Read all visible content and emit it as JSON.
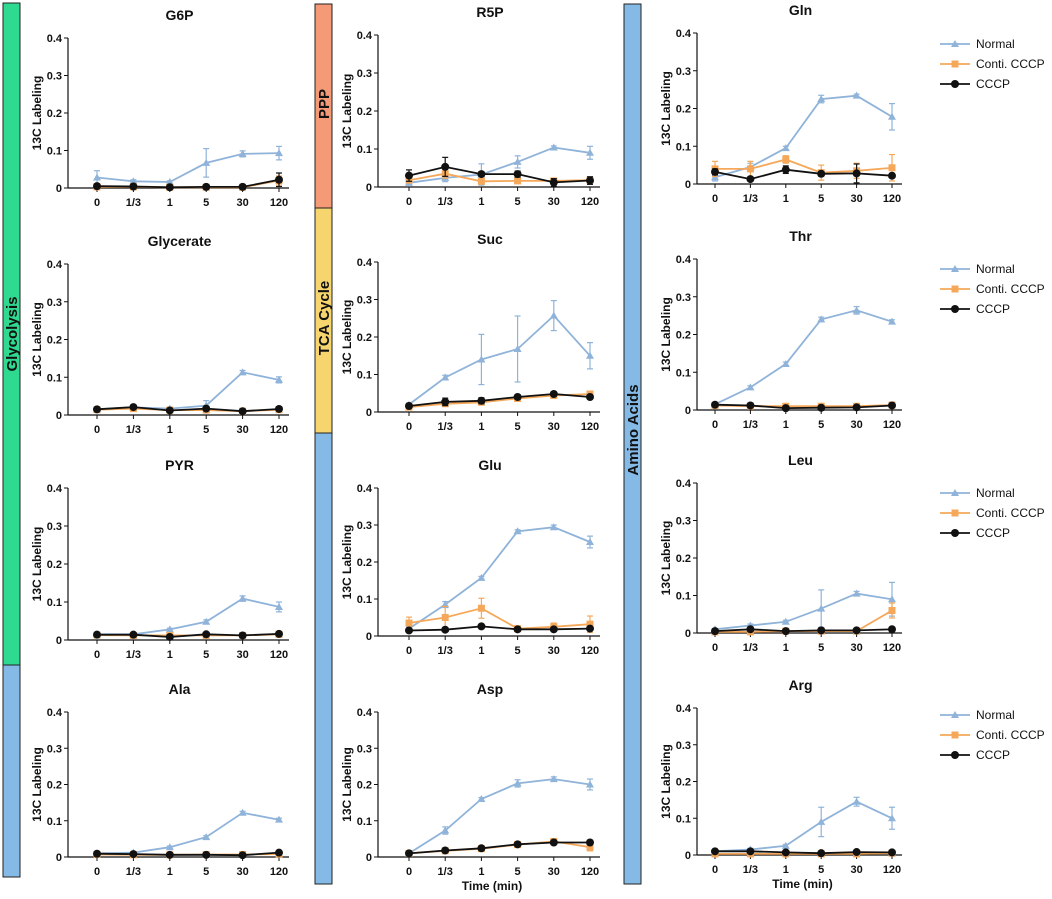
{
  "colors": {
    "normal": "#8fb3d9",
    "conti": "#f5a85a",
    "cccp": "#111111",
    "glycolysis_bar": "#2fd98f",
    "blue_bar": "#85b9e6",
    "ppp_bar": "#f49a77",
    "tca_bar": "#f6d56e"
  },
  "legend": [
    "Normal",
    "Conti. CCCP",
    "CCCP"
  ],
  "side_labels": {
    "glycolysis": "Glycolysis",
    "ppp": "PPP",
    "tca": "TCA Cycle",
    "amino": "Amino Acids"
  },
  "chart_data": [
    {
      "type": "line",
      "title": "G6P",
      "xlabel": "",
      "ylabel": "13C Labeling",
      "categories": [
        "0",
        "1/3",
        "1",
        "5",
        "30",
        "120"
      ],
      "ylim": [
        0,
        0.4
      ],
      "yticks": [
        "0",
        "0.1",
        "0.2",
        "0.3",
        "0.4"
      ],
      "series": [
        {
          "name": "Normal",
          "values": [
            0.028,
            0.018,
            0.016,
            0.067,
            0.091,
            0.093
          ],
          "err": [
            0.018,
            0.004,
            0.003,
            0.038,
            0.008,
            0.018
          ]
        },
        {
          "name": "Conti. CCCP",
          "values": [
            0.003,
            0.003,
            0.002,
            0.002,
            0.002,
            0.02
          ],
          "err": [
            0,
            0,
            0,
            0,
            0,
            0.012
          ]
        },
        {
          "name": "CCCP",
          "values": [
            0.005,
            0.004,
            0.002,
            0.003,
            0.003,
            0.022
          ],
          "err": [
            0,
            0,
            0,
            0,
            0,
            0.018
          ]
        }
      ]
    },
    {
      "type": "line",
      "title": "R5P",
      "xlabel": "",
      "ylabel": "13C Labeling",
      "categories": [
        "0",
        "1/3",
        "1",
        "5",
        "30",
        "120"
      ],
      "ylim": [
        0,
        0.4
      ],
      "yticks": [
        "0",
        "0.1",
        "0.2",
        "0.3",
        "0.4"
      ],
      "series": [
        {
          "name": "Normal",
          "values": [
            0.011,
            0.024,
            0.033,
            0.066,
            0.104,
            0.09
          ],
          "err": [
            0.004,
            0.01,
            0.028,
            0.016,
            0.004,
            0.017
          ]
        },
        {
          "name": "Conti. CCCP",
          "values": [
            0.018,
            0.035,
            0.015,
            0.016,
            0.016,
            0.018
          ],
          "err": [
            0.003,
            0.012,
            0.003,
            0.003,
            0.003,
            0.004
          ]
        },
        {
          "name": "CCCP",
          "values": [
            0.03,
            0.053,
            0.034,
            0.034,
            0.012,
            0.017
          ],
          "err": [
            0.015,
            0.025,
            0.006,
            0.008,
            0.01,
            0.01
          ]
        }
      ]
    },
    {
      "type": "line",
      "title": "Gln",
      "xlabel": "",
      "ylabel": "13C Labeling",
      "categories": [
        "0",
        "1/3",
        "1",
        "5",
        "30",
        "120"
      ],
      "ylim": [
        0,
        0.4
      ],
      "yticks": [
        "0",
        "0.1",
        "0.2",
        "0.3",
        "0.4"
      ],
      "series": [
        {
          "name": "Normal",
          "values": [
            0.018,
            0.045,
            0.095,
            0.225,
            0.234,
            0.178
          ],
          "err": [
            0.01,
            0.01,
            0.005,
            0.01,
            0.004,
            0.035
          ]
        },
        {
          "name": "Conti. CCCP",
          "values": [
            0.04,
            0.04,
            0.065,
            0.03,
            0.035,
            0.043
          ],
          "err": [
            0.02,
            0.02,
            0.01,
            0.02,
            0.02,
            0.035
          ]
        },
        {
          "name": "CCCP",
          "values": [
            0.032,
            0.013,
            0.038,
            0.027,
            0.028,
            0.022
          ],
          "err": [
            0.008,
            0.005,
            0.01,
            0.006,
            0.025,
            0.005
          ]
        }
      ]
    },
    {
      "type": "line",
      "title": "Glycerate",
      "xlabel": "",
      "ylabel": "13C Labeling",
      "categories": [
        "0",
        "1/3",
        "1",
        "5",
        "30",
        "120"
      ],
      "ylim": [
        0,
        0.4
      ],
      "yticks": [
        "0",
        "0.1",
        "0.2",
        "0.3",
        "0.4"
      ],
      "series": [
        {
          "name": "Normal",
          "values": [
            0.015,
            0.02,
            0.017,
            0.025,
            0.113,
            0.093
          ],
          "err": [
            0.003,
            0.003,
            0.003,
            0.013,
            0.005,
            0.008
          ]
        },
        {
          "name": "Conti. CCCP",
          "values": [
            0.014,
            0.017,
            0.013,
            0.013,
            0.01,
            0.014
          ],
          "err": [
            0,
            0,
            0,
            0,
            0,
            0
          ]
        },
        {
          "name": "CCCP",
          "values": [
            0.015,
            0.021,
            0.012,
            0.017,
            0.01,
            0.016
          ],
          "err": [
            0.002,
            0.004,
            0.002,
            0.006,
            0.004,
            0.002
          ]
        }
      ]
    },
    {
      "type": "line",
      "title": "Suc",
      "xlabel": "",
      "ylabel": "13C Labeling",
      "categories": [
        "0",
        "1/3",
        "1",
        "5",
        "30",
        "120"
      ],
      "ylim": [
        0,
        0.4
      ],
      "yticks": [
        "0",
        "0.1",
        "0.2",
        "0.3",
        "0.4"
      ],
      "series": [
        {
          "name": "Normal",
          "values": [
            0.02,
            0.092,
            0.14,
            0.168,
            0.257,
            0.15
          ],
          "err": [
            0.004,
            0.006,
            0.067,
            0.088,
            0.04,
            0.035
          ]
        },
        {
          "name": "Conti. CCCP",
          "values": [
            0.013,
            0.022,
            0.026,
            0.036,
            0.044,
            0.048
          ],
          "err": [
            0,
            0.004,
            0.004,
            0.004,
            0.004,
            0.004
          ]
        },
        {
          "name": "CCCP",
          "values": [
            0.016,
            0.027,
            0.03,
            0.04,
            0.048,
            0.04
          ],
          "err": [
            0.003,
            0.01,
            0.008,
            0.006,
            0.005,
            0.005
          ]
        }
      ]
    },
    {
      "type": "line",
      "title": "Thr",
      "xlabel": "",
      "ylabel": "13C Labeling",
      "categories": [
        "0",
        "1/3",
        "1",
        "5",
        "30",
        "120"
      ],
      "ylim": [
        0,
        0.4
      ],
      "yticks": [
        "0",
        "0.1",
        "0.2",
        "0.3",
        "0.4"
      ],
      "series": [
        {
          "name": "Normal",
          "values": [
            0.015,
            0.06,
            0.122,
            0.24,
            0.264,
            0.234
          ],
          "err": [
            0.002,
            0.004,
            0.005,
            0.006,
            0.01,
            0.005
          ]
        },
        {
          "name": "Conti. CCCP",
          "values": [
            0.012,
            0.01,
            0.01,
            0.01,
            0.01,
            0.013
          ],
          "err": [
            0,
            0,
            0.004,
            0.004,
            0.004,
            0.004
          ]
        },
        {
          "name": "CCCP",
          "values": [
            0.014,
            0.012,
            0.005,
            0.006,
            0.007,
            0.012
          ],
          "err": [
            0.002,
            0.002,
            0.002,
            0.002,
            0.002,
            0.002
          ]
        }
      ]
    },
    {
      "type": "line",
      "title": "PYR",
      "xlabel": "",
      "ylabel": "13C Labeling",
      "categories": [
        "0",
        "1/3",
        "1",
        "5",
        "30",
        "120"
      ],
      "ylim": [
        0,
        0.4
      ],
      "yticks": [
        "0",
        "0.1",
        "0.2",
        "0.3",
        "0.4"
      ],
      "series": [
        {
          "name": "Normal",
          "values": [
            0.015,
            0.015,
            0.028,
            0.048,
            0.109,
            0.087
          ],
          "err": [
            0.002,
            0.002,
            0.003,
            0.005,
            0.007,
            0.013
          ]
        },
        {
          "name": "Conti. CCCP",
          "values": [
            0.013,
            0.012,
            0.012,
            0.012,
            0.012,
            0.015
          ],
          "err": [
            0,
            0,
            0,
            0,
            0,
            0
          ]
        },
        {
          "name": "CCCP",
          "values": [
            0.014,
            0.014,
            0.008,
            0.015,
            0.012,
            0.016
          ],
          "err": [
            0.002,
            0.002,
            0.002,
            0.002,
            0.002,
            0.002
          ]
        }
      ]
    },
    {
      "type": "line",
      "title": "Glu",
      "xlabel": "",
      "ylabel": "13C Labeling",
      "categories": [
        "0",
        "1/3",
        "1",
        "5",
        "30",
        "120"
      ],
      "ylim": [
        0,
        0.4
      ],
      "yticks": [
        "0",
        "0.1",
        "0.2",
        "0.3",
        "0.4"
      ],
      "series": [
        {
          "name": "Normal",
          "values": [
            0.02,
            0.085,
            0.157,
            0.283,
            0.294,
            0.254
          ],
          "err": [
            0.004,
            0.008,
            0.004,
            0.004,
            0.006,
            0.016
          ]
        },
        {
          "name": "Conti. CCCP",
          "values": [
            0.035,
            0.05,
            0.075,
            0.02,
            0.025,
            0.032
          ],
          "err": [
            0.016,
            0.03,
            0.027,
            0.004,
            0.01,
            0.022
          ]
        },
        {
          "name": "CCCP",
          "values": [
            0.015,
            0.017,
            0.026,
            0.018,
            0.018,
            0.02
          ],
          "err": [
            0.002,
            0.002,
            0.004,
            0.002,
            0.002,
            0.002
          ]
        }
      ]
    },
    {
      "type": "line",
      "title": "Leu",
      "xlabel": "",
      "ylabel": "13C Labeling",
      "categories": [
        "0",
        "1/3",
        "1",
        "5",
        "30",
        "120"
      ],
      "ylim": [
        0,
        0.4
      ],
      "yticks": [
        "0",
        "0.1",
        "0.2",
        "0.3",
        "0.4"
      ],
      "series": [
        {
          "name": "Normal",
          "values": [
            0.01,
            0.02,
            0.03,
            0.065,
            0.105,
            0.09
          ],
          "err": [
            0.002,
            0.004,
            0.004,
            0.05,
            0.006,
            0.045
          ]
        },
        {
          "name": "Conti. CCCP",
          "values": [
            0.003,
            0.003,
            0.005,
            0.005,
            0.005,
            0.06
          ],
          "err": [
            0,
            0,
            0,
            0,
            0,
            0.02
          ]
        },
        {
          "name": "CCCP",
          "values": [
            0.005,
            0.01,
            0.005,
            0.007,
            0.007,
            0.01
          ],
          "err": [
            0.002,
            0.004,
            0.002,
            0.002,
            0.002,
            0.003
          ]
        }
      ]
    },
    {
      "type": "line",
      "title": "Ala",
      "xlabel": "",
      "ylabel": "13C Labeling",
      "categories": [
        "0",
        "1/3",
        "1",
        "5",
        "30",
        "120"
      ],
      "ylim": [
        0,
        0.4
      ],
      "yticks": [
        "0",
        "0.1",
        "0.2",
        "0.3",
        "0.4"
      ],
      "series": [
        {
          "name": "Normal",
          "values": [
            0.01,
            0.012,
            0.027,
            0.055,
            0.122,
            0.103
          ],
          "err": [
            0.002,
            0.002,
            0.003,
            0.004,
            0.004,
            0.004
          ]
        },
        {
          "name": "Conti. CCCP",
          "values": [
            0.007,
            0.006,
            0.006,
            0.007,
            0.007,
            0.008
          ],
          "err": [
            0,
            0,
            0,
            0,
            0,
            0
          ]
        },
        {
          "name": "CCCP",
          "values": [
            0.009,
            0.008,
            0.006,
            0.006,
            0.005,
            0.012
          ],
          "err": [
            0.001,
            0.001,
            0.001,
            0.001,
            0.001,
            0.002
          ]
        }
      ]
    },
    {
      "type": "line",
      "title": "Asp",
      "xlabel": "Time (min)",
      "ylabel": "13C Labeling",
      "categories": [
        "0",
        "1/3",
        "1",
        "5",
        "30",
        "120"
      ],
      "ylim": [
        0,
        0.4
      ],
      "yticks": [
        "0",
        "0.1",
        "0.2",
        "0.3",
        "0.4"
      ],
      "series": [
        {
          "name": "Normal",
          "values": [
            0.01,
            0.073,
            0.16,
            0.203,
            0.215,
            0.2
          ],
          "err": [
            0.002,
            0.01,
            0.004,
            0.01,
            0.006,
            0.015
          ]
        },
        {
          "name": "Conti. CCCP",
          "values": [
            0.01,
            0.017,
            0.023,
            0.034,
            0.043,
            0.027
          ],
          "err": [
            0,
            0.002,
            0.002,
            0.002,
            0.003,
            0.01
          ]
        },
        {
          "name": "CCCP",
          "values": [
            0.01,
            0.018,
            0.024,
            0.035,
            0.04,
            0.04
          ],
          "err": [
            0.001,
            0.002,
            0.002,
            0.002,
            0.006,
            0.006
          ]
        }
      ]
    },
    {
      "type": "line",
      "title": "Arg",
      "xlabel": "Time (min)",
      "ylabel": "13C Labeling",
      "categories": [
        "0",
        "1/3",
        "1",
        "5",
        "30",
        "120"
      ],
      "ylim": [
        0,
        0.4
      ],
      "yticks": [
        "0",
        "0.1",
        "0.2",
        "0.3",
        "0.4"
      ],
      "series": [
        {
          "name": "Normal",
          "values": [
            0.01,
            0.015,
            0.025,
            0.09,
            0.145,
            0.1
          ],
          "err": [
            0.002,
            0.003,
            0.004,
            0.04,
            0.012,
            0.03
          ]
        },
        {
          "name": "Conti. CCCP",
          "values": [
            0.003,
            0.003,
            0.003,
            0.003,
            0.003,
            0.005
          ],
          "err": [
            0,
            0,
            0,
            0,
            0,
            0
          ]
        },
        {
          "name": "CCCP",
          "values": [
            0.01,
            0.01,
            0.007,
            0.005,
            0.008,
            0.007
          ],
          "err": [
            0.001,
            0.001,
            0.001,
            0.001,
            0.001,
            0.001
          ]
        }
      ]
    }
  ]
}
